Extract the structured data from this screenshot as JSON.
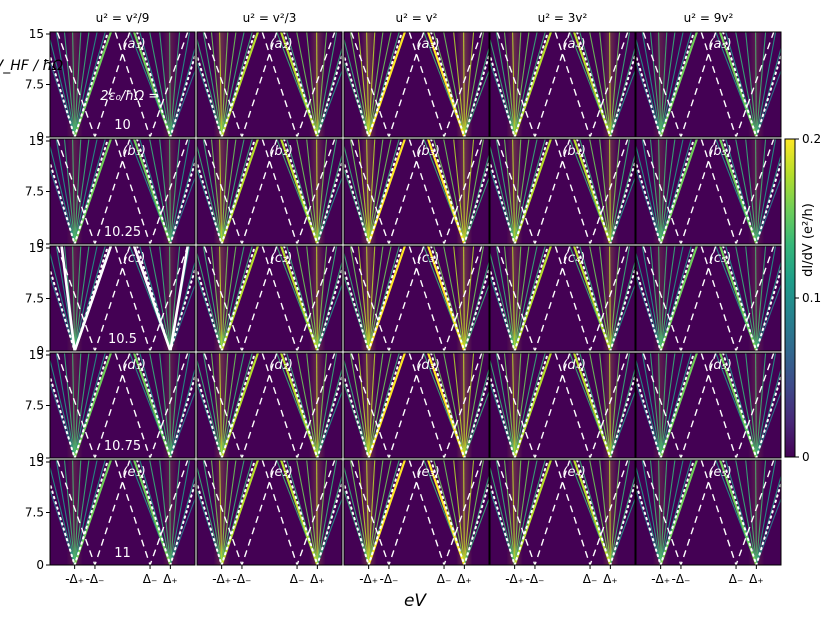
{
  "chart_data": {
    "type": "heatmap",
    "title": "",
    "xlabel": "eV",
    "ylabel": "eV_HF / ħΩ",
    "ylim": [
      0,
      15
    ],
    "ytick_labels": [
      "0",
      "7.5",
      "15"
    ],
    "xtick_labels": [
      "-Δ₊",
      "-Δ₋",
      "Δ₋",
      "Δ₊"
    ],
    "column_titles": [
      "u² = v²/9",
      "u² = v²/3",
      "u² = v²",
      "u² = 3v²",
      "u² = 9v²"
    ],
    "row_values": [
      "10",
      "10.25",
      "10.5",
      "10.75",
      "11"
    ],
    "row_parameter_label": "2ε₀/ħΩ =",
    "colorbar": {
      "label": "dI/dV (e²/h)",
      "min": 0,
      "max": 0.2,
      "tick_labels": [
        "0",
        "0.1",
        "0.2"
      ],
      "colormap": "viridis"
    },
    "panel_labels": [
      [
        "(a₁)",
        "(a₂)",
        "(a₃)",
        "(a₄)",
        "(a₅)"
      ],
      [
        "(b₁)",
        "(b₂)",
        "(b₃)",
        "(b₄)",
        "(b₅)"
      ],
      [
        "(c₁)",
        "(c₂)",
        "(c₃)",
        "(c₄)",
        "(c₅)"
      ],
      [
        "(d₁)",
        "(d₂)",
        "(d₃)",
        "(d₄)",
        "(d₅)"
      ],
      [
        "(e₁)",
        "(e₂)",
        "(e₃)",
        "(e₄)",
        "(e₅)"
      ]
    ],
    "relative_brightness": [
      0.55,
      0.85,
      1.0,
      0.85,
      0.55
    ],
    "solid_white_lines_panel": "c₁"
  },
  "colors": {
    "background": "#440154",
    "viridis": [
      "#440154",
      "#482878",
      "#3e4a89",
      "#31688e",
      "#26828e",
      "#1f9e89",
      "#35b779",
      "#6ece58",
      "#b5de2b",
      "#fde725"
    ],
    "overlay": "#ffffff"
  }
}
